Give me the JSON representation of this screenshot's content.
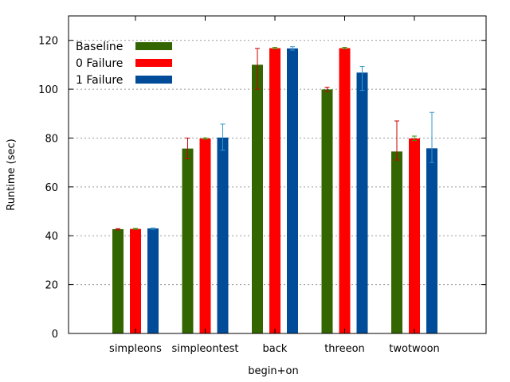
{
  "chart_data": {
    "type": "bar",
    "title": "",
    "xlabel": "begin+on",
    "ylabel": "Runtime (sec)",
    "ylim": [
      0,
      130
    ],
    "yticks": [
      0,
      20,
      40,
      60,
      80,
      100,
      120
    ],
    "ytick_labels": [
      "0",
      "20",
      "40",
      "60",
      "80",
      "100",
      "120"
    ],
    "grid": true,
    "legend_position": "top-left",
    "categories": [
      "simpleons",
      "simpleontest",
      "back",
      "threeon",
      "twotwoon"
    ],
    "series": [
      {
        "name": "Baseline",
        "color": "#336600",
        "error_color": "#cc0000",
        "values": [
          42.7,
          75.7,
          110.0,
          99.9,
          74.5
        ],
        "err_low": [
          42.4,
          71.5,
          100.0,
          99.0,
          71.0
        ],
        "err_high": [
          42.9,
          80.0,
          116.7,
          100.8,
          87.0
        ]
      },
      {
        "name": "0 Failure",
        "color": "#ff0000",
        "error_color": "#339900",
        "values": [
          42.8,
          79.8,
          116.8,
          116.8,
          79.8
        ],
        "err_low": [
          42.6,
          79.5,
          116.5,
          116.5,
          79.0
        ],
        "err_high": [
          43.0,
          80.1,
          117.1,
          117.1,
          80.8
        ]
      },
      {
        "name": "1 Failure",
        "color": "#004c99",
        "error_color": "#3399cc",
        "values": [
          43.0,
          80.2,
          116.7,
          106.8,
          75.8
        ],
        "err_low": [
          42.7,
          75.0,
          116.0,
          99.5,
          70.0
        ],
        "err_high": [
          43.2,
          85.7,
          117.4,
          109.3,
          90.5
        ]
      }
    ]
  }
}
